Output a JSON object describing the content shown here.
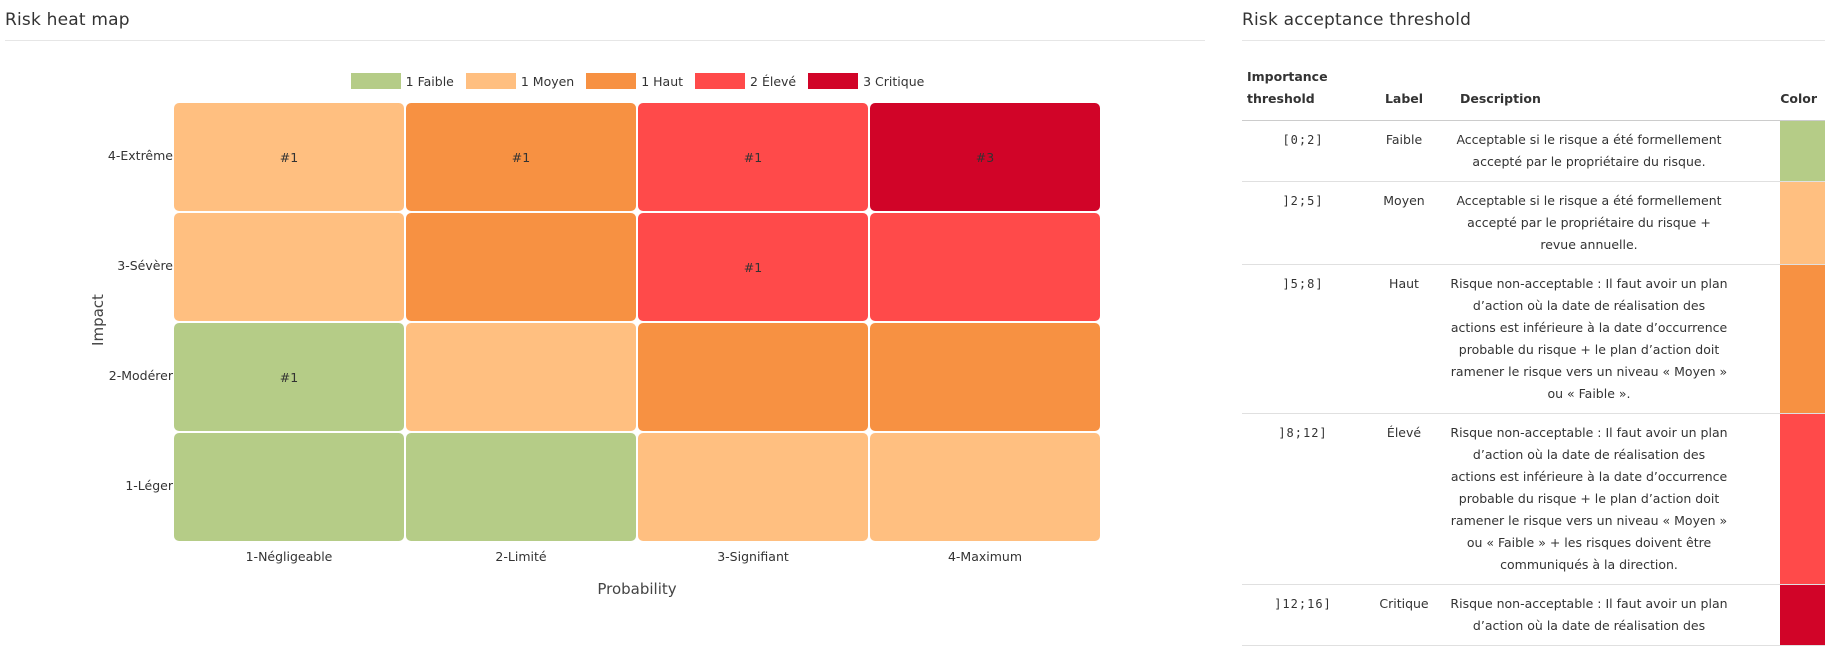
{
  "heatmap_panel": {
    "title": "Risk heat map"
  },
  "threshold_panel": {
    "title": "Risk acceptance threshold"
  },
  "colors": {
    "faible": "#b5cc87",
    "moyen": "#ffbf80",
    "haut": "#f79142",
    "eleve": "#ff4a4a",
    "critique": "#d10428"
  },
  "chart_data": {
    "type": "heatmap",
    "title": "",
    "xlabel": "Probability",
    "ylabel": "Impact",
    "x_categories": [
      "1-Négligeable",
      "2-Limité",
      "3-Signifiant",
      "4-Maximum"
    ],
    "y_categories": [
      "1-Léger",
      "2-Modérer",
      "3-Sévère",
      "4-Extrême"
    ],
    "legend": [
      {
        "label": "1 Faible",
        "color": "#b5cc87"
      },
      {
        "label": "1 Moyen",
        "color": "#ffbf80"
      },
      {
        "label": "1 Haut",
        "color": "#f79142"
      },
      {
        "label": "2 Élevé",
        "color": "#ff4a4a"
      },
      {
        "label": "3 Critique",
        "color": "#d10428"
      }
    ],
    "cells": [
      {
        "x": "1-Négligeable",
        "y": "4-Extrême",
        "level": "moyen",
        "label": "#1"
      },
      {
        "x": "2-Limité",
        "y": "4-Extrême",
        "level": "haut",
        "label": "#1"
      },
      {
        "x": "3-Signifiant",
        "y": "4-Extrême",
        "level": "eleve",
        "label": "#1"
      },
      {
        "x": "4-Maximum",
        "y": "4-Extrême",
        "level": "critique",
        "label": "#3"
      },
      {
        "x": "1-Négligeable",
        "y": "3-Sévère",
        "level": "moyen",
        "label": ""
      },
      {
        "x": "2-Limité",
        "y": "3-Sévère",
        "level": "haut",
        "label": ""
      },
      {
        "x": "3-Signifiant",
        "y": "3-Sévère",
        "level": "eleve",
        "label": "#1"
      },
      {
        "x": "4-Maximum",
        "y": "3-Sévère",
        "level": "eleve",
        "label": ""
      },
      {
        "x": "1-Négligeable",
        "y": "2-Modérer",
        "level": "faible",
        "label": "#1"
      },
      {
        "x": "2-Limité",
        "y": "2-Modérer",
        "level": "moyen",
        "label": ""
      },
      {
        "x": "3-Signifiant",
        "y": "2-Modérer",
        "level": "haut",
        "label": ""
      },
      {
        "x": "4-Maximum",
        "y": "2-Modérer",
        "level": "haut",
        "label": ""
      },
      {
        "x": "1-Négligeable",
        "y": "1-Léger",
        "level": "faible",
        "label": ""
      },
      {
        "x": "2-Limité",
        "y": "1-Léger",
        "level": "faible",
        "label": ""
      },
      {
        "x": "3-Signifiant",
        "y": "1-Léger",
        "level": "moyen",
        "label": ""
      },
      {
        "x": "4-Maximum",
        "y": "1-Léger",
        "level": "moyen",
        "label": ""
      }
    ]
  },
  "threshold_table": {
    "headers": {
      "threshold": "Importance threshold",
      "label": "Label",
      "description": "Description",
      "color": "Color"
    },
    "rows": [
      {
        "threshold": "[0;2]",
        "label": "Faible",
        "description": "Acceptable si le risque a été formellement accepté par le propriétaire du risque.",
        "level": "faible"
      },
      {
        "threshold": "]2;5]",
        "label": "Moyen",
        "description": "Acceptable si le risque a été formellement accepté par le propriétaire du risque + revue annuelle.",
        "level": "moyen"
      },
      {
        "threshold": "]5;8]",
        "label": "Haut",
        "description": "Risque non-acceptable : Il faut avoir un plan d’action où la date de réalisation des actions est inférieure à la date d’occurrence probable du risque + le plan d’action doit ramener le risque vers un niveau « Moyen » ou « Faible ».",
        "level": "haut"
      },
      {
        "threshold": "]8;12]",
        "label": "Élevé",
        "description": "Risque non-acceptable : Il faut avoir un plan d’action où la date de réalisation des actions est inférieure à la date d’occurrence probable du risque + le plan d’action doit ramener le risque vers un niveau « Moyen » ou « Faible » + les risques doivent être communiqués à la direction.",
        "level": "eleve"
      },
      {
        "threshold": "]12;16]",
        "label": "Critique",
        "description": "Risque non-acceptable : Il faut avoir un plan d’action où la date de réalisation des",
        "level": "critique"
      }
    ]
  }
}
